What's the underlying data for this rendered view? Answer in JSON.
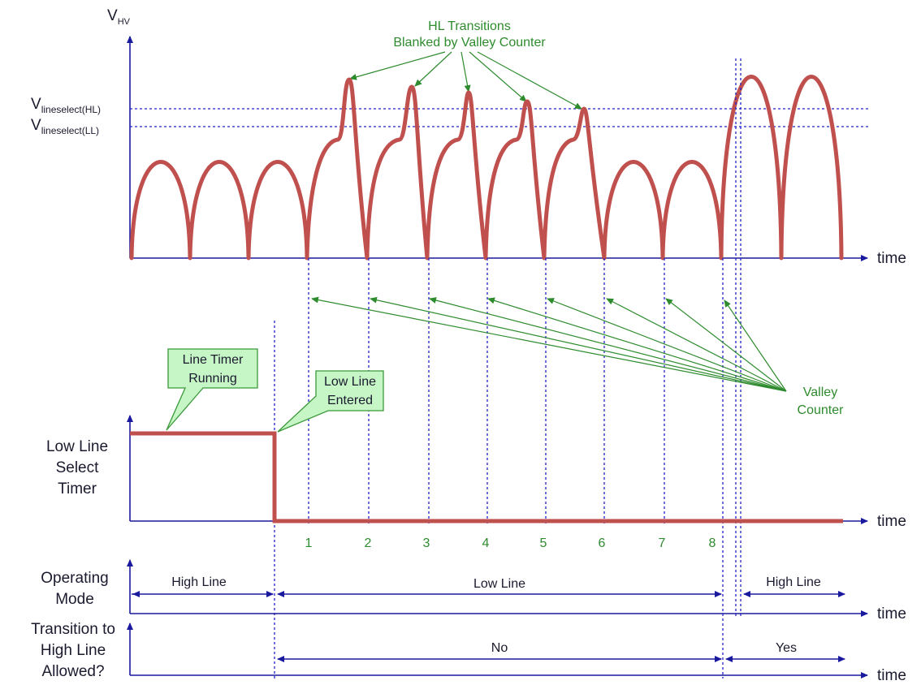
{
  "diagram": {
    "y_axis_label_main": "V",
    "y_axis_label_sub": "HV",
    "threshold_hl_main": "V",
    "threshold_hl_sub": "lineselect(HL)",
    "threshold_ll_main": "V",
    "threshold_ll_sub": "lineselect(LL)",
    "hl_transitions_line1": "HL Transitions",
    "hl_transitions_line2": "Blanked by Valley Counter",
    "time_label": "time",
    "valley_counter_line1": "Valley",
    "valley_counter_line2": "Counter",
    "callout_line_timer_1": "Line Timer",
    "callout_line_timer_2": "Running",
    "callout_low_line_1": "Low Line",
    "callout_low_line_2": "Entered",
    "low_line_select_1": "Low Line",
    "low_line_select_2": "Select",
    "low_line_select_3": "Timer",
    "valley_numbers": [
      "1",
      "2",
      "3",
      "4",
      "5",
      "6",
      "7",
      "8"
    ],
    "operating_mode_1": "Operating",
    "operating_mode_2": "Mode",
    "mode_high_line_left": "High Line",
    "mode_low_line": "Low Line",
    "mode_high_line_right": "High Line",
    "transition_1": "Transition to",
    "transition_2": "High Line",
    "transition_3": "Allowed?",
    "allowed_no": "No",
    "allowed_yes": "Yes"
  },
  "colors": {
    "waveform": "#c0504d",
    "axis": "#1a1a9e",
    "annotation": "#2e8b2e",
    "callout_fill": "#c6f5c6"
  }
}
